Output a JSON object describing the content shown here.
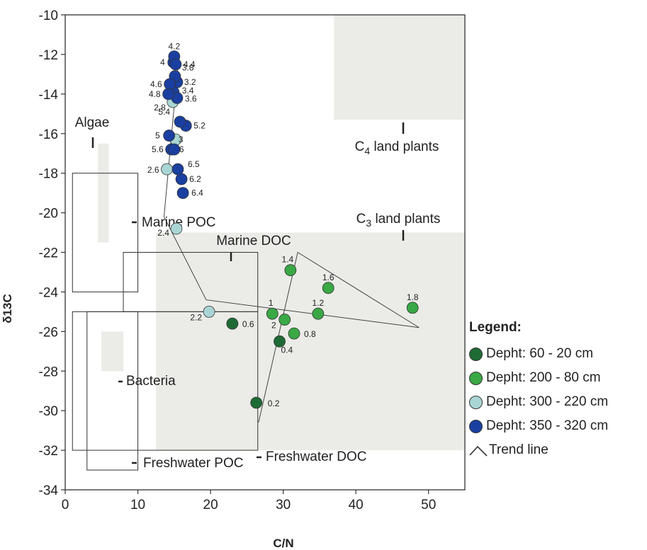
{
  "chart_data": {
    "type": "scatter",
    "xlabel": "C/N",
    "ylabel": "δ13C",
    "xlim": [
      0,
      55
    ],
    "ylim": [
      -34,
      -10
    ],
    "x_ticks": [
      "0",
      "10",
      "20",
      "30",
      "40",
      "50"
    ],
    "y_ticks": [
      "-10",
      "-12",
      "-14",
      "-16",
      "-18",
      "-20",
      "-22",
      "-24",
      "-26",
      "-28",
      "-30",
      "-32",
      "-34"
    ],
    "grid": false,
    "legend_position": "right",
    "legend_title": "Legend:",
    "regions": [
      {
        "label": "C4 land plants",
        "label_main": "C",
        "label_sub": "4",
        "label_rest": " land plants",
        "x": [
          37,
          55
        ],
        "y": [
          -15.3,
          -10
        ],
        "style": "shaded"
      },
      {
        "label": "C3 land plants",
        "label_main": "C",
        "label_sub": "3",
        "label_rest": " land plants",
        "x": [
          12.5,
          55
        ],
        "y": [
          -32,
          -21
        ],
        "style": "shaded"
      },
      {
        "label": "Algae",
        "x": [
          4.5,
          6
        ],
        "y": [
          -21.5,
          -16.5
        ],
        "style": "shaded"
      },
      {
        "label": "Bacteria",
        "x": [
          5,
          8
        ],
        "y": [
          -28,
          -26
        ],
        "style": "shaded"
      },
      {
        "label": "Marine POC",
        "x": [
          1,
          10
        ],
        "y": [
          -24,
          -18
        ],
        "style": "outline"
      },
      {
        "label": "Marine DOC",
        "x": [
          8,
          26.5
        ],
        "y": [
          -25,
          -22
        ],
        "style": "outline"
      },
      {
        "label": "Freshwater DOC",
        "x": [
          1,
          26.5
        ],
        "y": [
          -32,
          -25
        ],
        "style": "outline"
      },
      {
        "label": "Freshwater POC",
        "x": [
          3,
          10
        ],
        "y": [
          -33,
          -25
        ],
        "style": "outline"
      }
    ],
    "series": [
      {
        "name": "Depht: 60 - 20 cm",
        "color": "#1e6b35",
        "points": [
          {
            "x": 26.3,
            "y": -29.6,
            "label": "0.2"
          },
          {
            "x": 29.5,
            "y": -26.5,
            "label": "0.4"
          },
          {
            "x": 23.0,
            "y": -25.6,
            "label": "0.6"
          }
        ]
      },
      {
        "name": "Depht: 200 - 80 cm",
        "color": "#39a845",
        "points": [
          {
            "x": 31.5,
            "y": -26.1,
            "label": "0.8"
          },
          {
            "x": 28.5,
            "y": -25.1,
            "label": "1"
          },
          {
            "x": 34.8,
            "y": -25.1,
            "label": "1.2"
          },
          {
            "x": 31.0,
            "y": -22.9,
            "label": "1.4"
          },
          {
            "x": 36.2,
            "y": -23.8,
            "label": "1.6"
          },
          {
            "x": 47.8,
            "y": -24.8,
            "label": "1.8"
          },
          {
            "x": 30.2,
            "y": -25.4,
            "label": "2"
          }
        ]
      },
      {
        "name": "Depht: 300 - 220 cm",
        "color": "#a9d6d4",
        "points": [
          {
            "x": 19.8,
            "y": -25.0,
            "label": "2.2"
          },
          {
            "x": 15.3,
            "y": -20.8,
            "label": "2.4"
          },
          {
            "x": 14.0,
            "y": -17.8,
            "label": "2.6"
          },
          {
            "x": 14.8,
            "y": -14.4,
            "label": "2.8"
          },
          {
            "x": 15.2,
            "y": -16.3,
            "label": "3"
          }
        ]
      },
      {
        "name": "Depht: 350 - 320 cm",
        "color": "#1a3fa0",
        "points": [
          {
            "x": 15.4,
            "y": -13.4,
            "label": "3.2"
          },
          {
            "x": 14.9,
            "y": -13.9,
            "label": "3.4"
          },
          {
            "x": 15.4,
            "y": -14.2,
            "label": "3.6"
          },
          {
            "x": 15.1,
            "y": -13.1,
            "label": "3.8"
          },
          {
            "x": 14.9,
            "y": -12.4,
            "label": "4"
          },
          {
            "x": 15.0,
            "y": -12.1,
            "label": "4.2"
          },
          {
            "x": 15.2,
            "y": -12.5,
            "label": "4.4"
          },
          {
            "x": 14.4,
            "y": -13.5,
            "label": "4.6"
          },
          {
            "x": 14.2,
            "y": -14.0,
            "label": "4.8"
          },
          {
            "x": 14.3,
            "y": -16.1,
            "label": "5"
          },
          {
            "x": 16.6,
            "y": -15.6,
            "label": "5.2"
          },
          {
            "x": 15.8,
            "y": -15.4,
            "label": "5.4"
          },
          {
            "x": 14.6,
            "y": -16.8,
            "label": "5.6"
          },
          {
            "x": 15.0,
            "y": -16.8,
            "label": "6"
          },
          {
            "x": 16.0,
            "y": -18.3,
            "label": "6.2"
          },
          {
            "x": 16.2,
            "y": -19.0,
            "label": "6.4"
          },
          {
            "x": 15.5,
            "y": -17.8,
            "label": "6.5"
          }
        ]
      }
    ],
    "trend_line": {
      "name": "Trend line",
      "points": [
        {
          "x": 15.6,
          "y": -12.2
        },
        {
          "x": 13.6,
          "y": -20.2
        },
        {
          "x": 19.4,
          "y": -24.4
        },
        {
          "x": 48.7,
          "y": -25.8
        },
        {
          "x": 32.0,
          "y": -22.0
        },
        {
          "x": 26.6,
          "y": -30.6
        }
      ]
    }
  }
}
